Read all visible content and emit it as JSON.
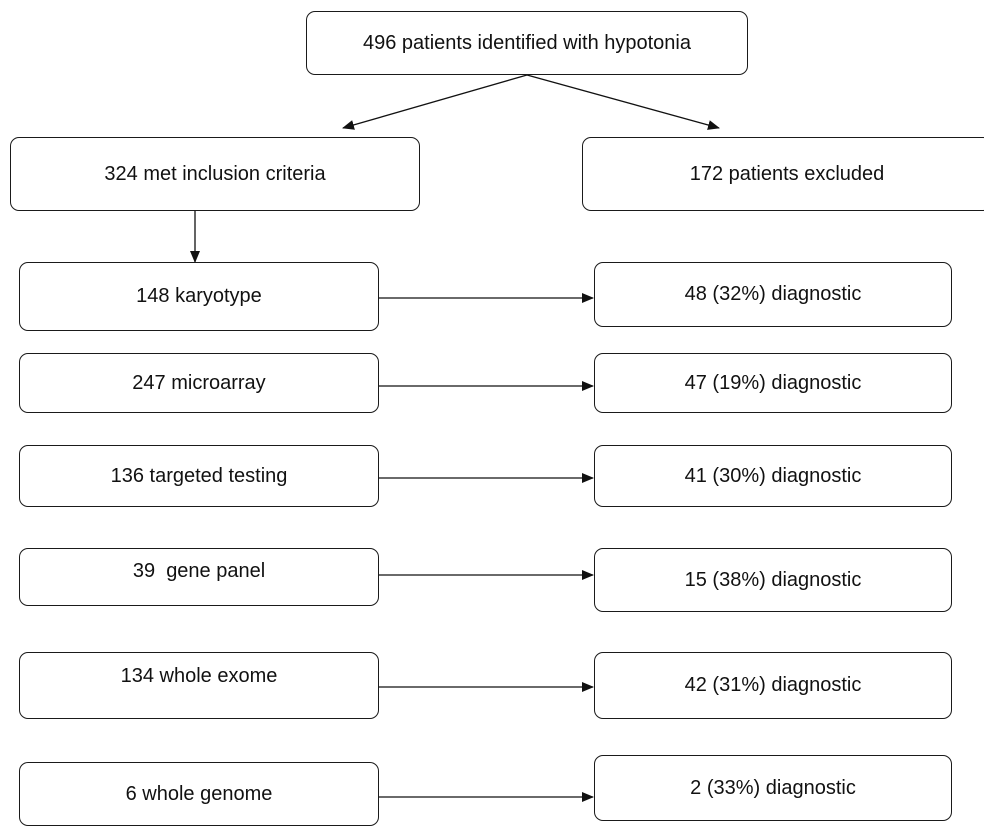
{
  "flowchart": {
    "top": "496 patients identified with hypotonia",
    "included": "324 met inclusion criteria",
    "excluded": "172 patients excluded",
    "tests": [
      {
        "label": "148 karyotype",
        "result": "48 (32%) diagnostic"
      },
      {
        "label": "247 microarray",
        "result": "47 (19%) diagnostic"
      },
      {
        "label": "136 targeted testing",
        "result": "41 (30%) diagnostic"
      },
      {
        "label": "39  gene panel",
        "result": "15 (38%) diagnostic"
      },
      {
        "label": "134 whole exome",
        "result": "42 (31%) diagnostic"
      },
      {
        "label": "6 whole genome",
        "result": "2 (33%) diagnostic"
      }
    ]
  }
}
